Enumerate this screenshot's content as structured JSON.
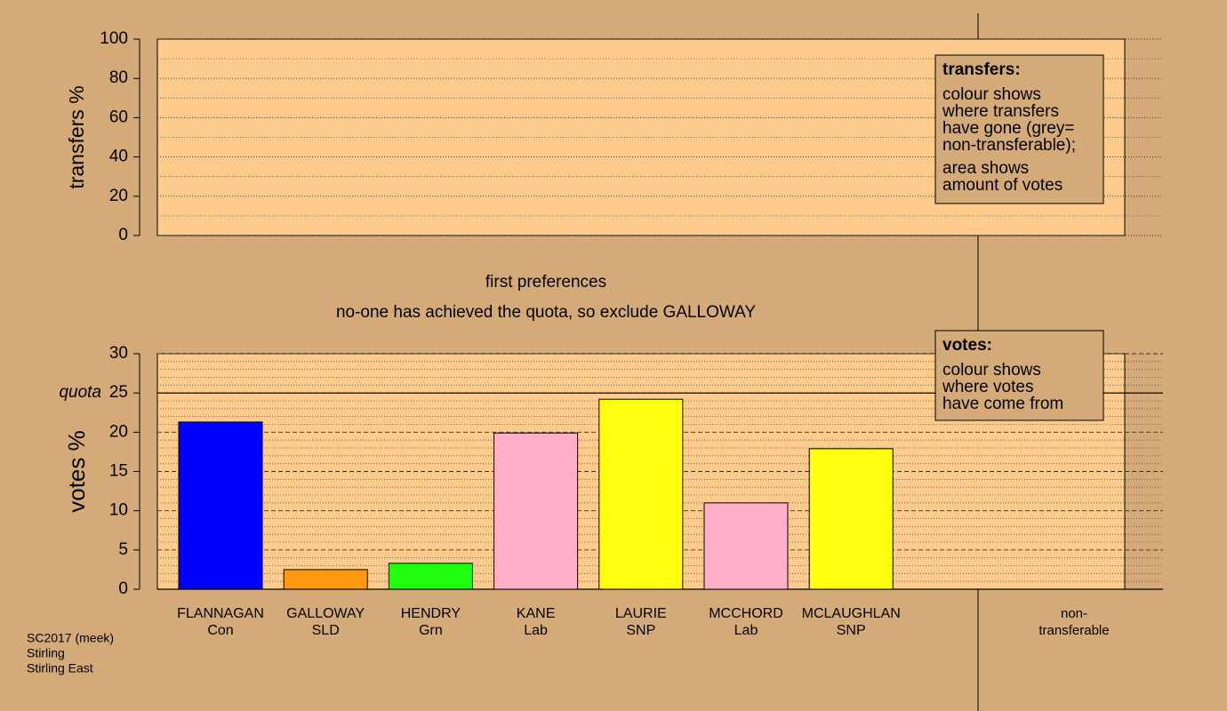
{
  "chart_data": [
    {
      "type": "bar",
      "ylabel": "transfers %",
      "ylim": [
        0,
        100
      ],
      "yticks": [
        0,
        20,
        40,
        60,
        80,
        100
      ],
      "yminor": [
        10,
        30,
        50,
        70,
        90
      ],
      "legend": {
        "title": "transfers:",
        "lines": [
          [
            "colour shows",
            "where transfers",
            "have gone (grey=",
            "non-transferable);"
          ],
          [
            "area shows",
            "amount of votes"
          ]
        ]
      }
    },
    {
      "type": "bar",
      "ylabel": "votes %",
      "ylim": [
        0,
        30
      ],
      "yticks": [
        0,
        5,
        10,
        15,
        20,
        25,
        30
      ],
      "yminor": [
        1,
        2,
        3,
        4,
        6,
        7,
        8,
        9,
        11,
        12,
        13,
        14,
        16,
        17,
        18,
        19,
        21,
        22,
        23,
        24,
        26,
        27,
        28,
        29
      ],
      "quota": {
        "value": 25,
        "label": "quota"
      },
      "categories": [
        "FLANNAGAN",
        "GALLOWAY",
        "HENDRY",
        "KANE",
        "LAURIE",
        "MCCHORD",
        "MCLAUGHLAN"
      ],
      "parties": [
        "Con",
        "SLD",
        "Grn",
        "Lab",
        "SNP",
        "Lab",
        "SNP"
      ],
      "values": [
        21.3,
        2.5,
        3.3,
        19.9,
        24.2,
        11.0,
        17.9
      ],
      "colors": [
        "#0000ff",
        "#ff9a10",
        "#20ff10",
        "#ffb0c8",
        "#ffff10",
        "#ffb0c8",
        "#ffff10"
      ],
      "extra_category": [
        "non-",
        "transferable"
      ],
      "legend": {
        "title": "votes:",
        "lines": [
          [
            "colour shows",
            "where votes",
            "have come from"
          ]
        ]
      }
    }
  ],
  "captions": [
    "first preferences",
    "no-one has achieved the quota, so exclude GALLOWAY"
  ],
  "footer": [
    "SC2017 (meek)",
    "Stirling",
    "Stirling East"
  ]
}
